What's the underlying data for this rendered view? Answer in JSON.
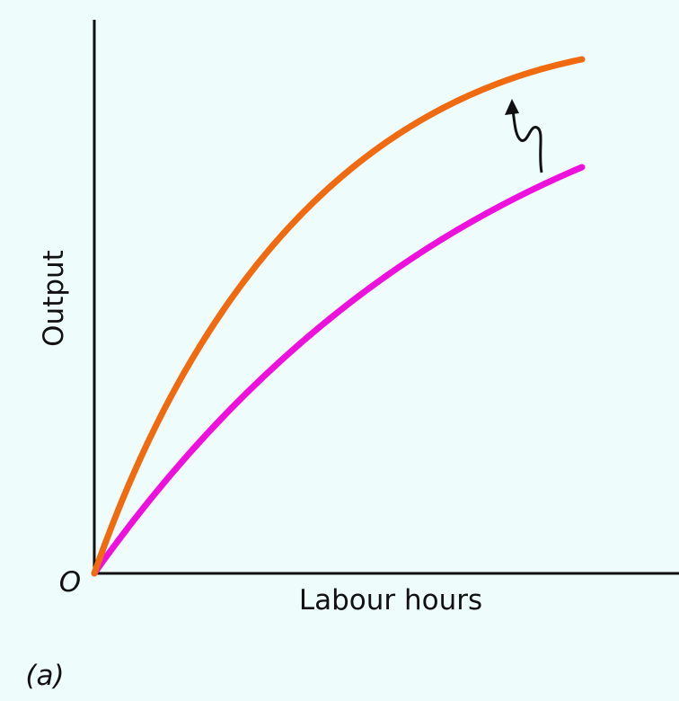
{
  "axes": {
    "y_label": "Output",
    "x_label": "Labour hours",
    "origin": "O"
  },
  "panel_label": "(a)"
}
